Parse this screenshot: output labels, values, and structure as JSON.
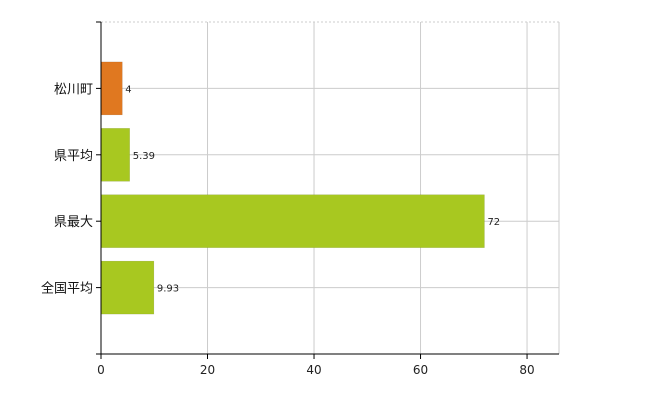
{
  "chart_data": {
    "type": "bar",
    "orientation": "horizontal",
    "title": "",
    "xlabel": "",
    "ylabel": "",
    "categories": [
      "松川町",
      "県平均",
      "県最大",
      "全国平均"
    ],
    "values": [
      4,
      5.39,
      72,
      9.93
    ],
    "value_labels": [
      "4",
      "5.39",
      "72",
      "9.93"
    ],
    "bar_colors": [
      "#e07820",
      "#a8c820",
      "#a8c820",
      "#a8c820"
    ],
    "xlim": [
      0,
      86
    ],
    "xticks": [
      0,
      20,
      40,
      60,
      80
    ],
    "grid": true,
    "legend": "none"
  },
  "colors": {
    "highlight": "#e07820",
    "bar": "#a8c820",
    "grid": "#cccccc",
    "axis": "#000000"
  }
}
